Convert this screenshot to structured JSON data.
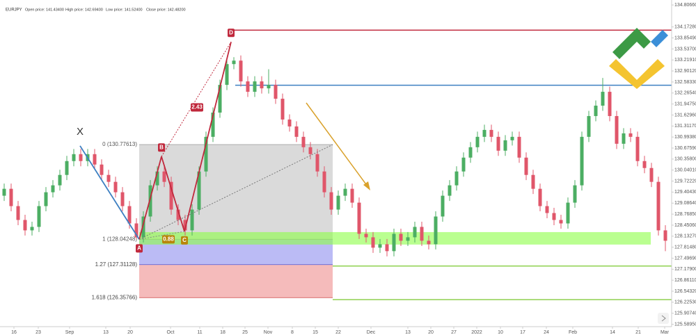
{
  "chart_data": {
    "type": "candlestick",
    "symbol": "EURJPY",
    "header": [
      "Open price: 141.43400",
      "High price: 142.69400",
      "Low price: 141.52400",
      "Close price: 142.48200"
    ],
    "up_color": "#4cae63",
    "down_color": "#e0566a",
    "xlim": [
      -0.6,
      95.9
    ],
    "ylim": [
      125.52,
      134.95
    ],
    "yticks": [
      {
        "value": 134.8066,
        "label": "134.80660"
      },
      {
        "value": 134.1728,
        "label": "134.17280"
      },
      {
        "value": 133.8549,
        "label": "133.85490"
      },
      {
        "value": 133.537,
        "label": "133.53700"
      },
      {
        "value": 133.2191,
        "label": "133.21910"
      },
      {
        "value": 132.9012,
        "label": "132.90120"
      },
      {
        "value": 132.5833,
        "label": "132.58330"
      },
      {
        "value": 132.2654,
        "label": "132.26540"
      },
      {
        "value": 131.9475,
        "label": "131.94750"
      },
      {
        "value": 131.6296,
        "label": "131.62960"
      },
      {
        "value": 131.3117,
        "label": "131.31170"
      },
      {
        "value": 130.9938,
        "label": "130.99380"
      },
      {
        "value": 130.6759,
        "label": "130.67590"
      },
      {
        "value": 130.358,
        "label": "130.35800"
      },
      {
        "value": 130.0401,
        "label": "130.04010"
      },
      {
        "value": 129.7222,
        "label": "129.72220"
      },
      {
        "value": 129.4043,
        "label": "129.40430"
      },
      {
        "value": 129.0864,
        "label": "129.08640"
      },
      {
        "value": 128.7685,
        "label": "128.76850"
      },
      {
        "value": 128.4506,
        "label": "128.45060"
      },
      {
        "value": 128.1327,
        "label": "128.13270"
      },
      {
        "value": 127.8148,
        "label": "127.81480"
      },
      {
        "value": 127.4969,
        "label": "127.49690"
      },
      {
        "value": 127.179,
        "label": "127.17900"
      },
      {
        "value": 126.8611,
        "label": "126.86110"
      },
      {
        "value": 126.5432,
        "label": "126.54320"
      },
      {
        "value": 126.2253,
        "label": "126.22530"
      },
      {
        "value": 125.9074,
        "label": "125.90740"
      },
      {
        "value": 125.5895,
        "label": "125.58950"
      }
    ],
    "xticks": [
      {
        "value": 1.4,
        "label": "16"
      },
      {
        "value": 4.9,
        "label": "23"
      },
      {
        "value": 9.4,
        "label": "Sep"
      },
      {
        "value": 14.6,
        "label": "13"
      },
      {
        "value": 18.1,
        "label": "20"
      },
      {
        "value": 23.9,
        "label": "Oct"
      },
      {
        "value": 28.1,
        "label": "11"
      },
      {
        "value": 31.4,
        "label": "18"
      },
      {
        "value": 34.6,
        "label": "25"
      },
      {
        "value": 37.9,
        "label": "Nov"
      },
      {
        "value": 41.4,
        "label": "8"
      },
      {
        "value": 44.7,
        "label": "15"
      },
      {
        "value": 48,
        "label": "22"
      },
      {
        "value": 52.7,
        "label": "Dec"
      },
      {
        "value": 58,
        "label": "13"
      },
      {
        "value": 61.3,
        "label": "20"
      },
      {
        "value": 64.6,
        "label": "27"
      },
      {
        "value": 67.9,
        "label": "2022"
      },
      {
        "value": 71.3,
        "label": "10"
      },
      {
        "value": 74.5,
        "label": "17"
      },
      {
        "value": 77.9,
        "label": "24"
      },
      {
        "value": 81.7,
        "label": "Feb"
      },
      {
        "value": 87.4,
        "label": "14"
      },
      {
        "value": 91.1,
        "label": "21"
      },
      {
        "value": 94.9,
        "label": "Mar"
      }
    ],
    "candles": [
      [
        129.3,
        129.65,
        129.15,
        129.5
      ],
      [
        129.5,
        129.65,
        128.85,
        129.0
      ],
      [
        129.0,
        129.15,
        128.45,
        128.6
      ],
      [
        128.6,
        128.75,
        128.15,
        128.3
      ],
      [
        128.3,
        128.55,
        128.15,
        128.4
      ],
      [
        128.4,
        129.15,
        128.25,
        129.0
      ],
      [
        129.0,
        129.55,
        128.85,
        129.4
      ],
      [
        129.4,
        129.75,
        129.25,
        129.6
      ],
      [
        129.6,
        130.05,
        129.45,
        129.9
      ],
      [
        129.9,
        130.45,
        129.75,
        130.3
      ],
      [
        130.3,
        130.65,
        130.15,
        130.5
      ],
      [
        130.5,
        130.65,
        130.15,
        130.3
      ],
      [
        130.3,
        130.65,
        130.15,
        130.5
      ],
      [
        130.5,
        130.65,
        130.05,
        130.2
      ],
      [
        130.2,
        130.35,
        129.75,
        129.9
      ],
      [
        129.9,
        130.05,
        129.55,
        129.7
      ],
      [
        129.7,
        129.85,
        129.25,
        129.4
      ],
      [
        129.4,
        129.55,
        128.85,
        129.0
      ],
      [
        129.0,
        129.15,
        128.35,
        128.5
      ],
      [
        128.5,
        128.65,
        128.04,
        128.1
      ],
      [
        128.1,
        128.85,
        127.95,
        128.7
      ],
      [
        128.7,
        129.75,
        128.55,
        129.6
      ],
      [
        129.6,
        130.15,
        129.45,
        130.0
      ],
      [
        130.0,
        130.15,
        129.55,
        129.7
      ],
      [
        129.7,
        129.85,
        128.75,
        128.9
      ],
      [
        128.9,
        129.05,
        128.45,
        128.6
      ],
      [
        128.6,
        128.75,
        128.15,
        128.3
      ],
      [
        128.3,
        129.05,
        128.15,
        128.9
      ],
      [
        128.9,
        130.15,
        128.75,
        130.0
      ],
      [
        130.0,
        131.15,
        129.85,
        131.0
      ],
      [
        131.0,
        131.85,
        130.85,
        131.7
      ],
      [
        131.7,
        132.65,
        131.55,
        132.5
      ],
      [
        132.5,
        133.25,
        132.35,
        133.1
      ],
      [
        133.1,
        133.3,
        132.95,
        133.2
      ],
      [
        133.2,
        133.35,
        132.45,
        132.6
      ],
      [
        132.6,
        132.75,
        132.15,
        132.3
      ],
      [
        132.3,
        132.75,
        132.15,
        132.6
      ],
      [
        132.6,
        132.75,
        132.25,
        132.4
      ],
      [
        132.4,
        132.95,
        132.25,
        132.5
      ],
      [
        132.5,
        132.65,
        131.95,
        132.1
      ],
      [
        132.1,
        132.25,
        131.35,
        131.5
      ],
      [
        131.5,
        131.65,
        131.15,
        131.3
      ],
      [
        131.3,
        131.45,
        130.85,
        131.0
      ],
      [
        131.0,
        131.15,
        130.55,
        130.7
      ],
      [
        130.7,
        130.85,
        130.35,
        130.5
      ],
      [
        130.5,
        130.65,
        129.85,
        130.0
      ],
      [
        130.0,
        130.15,
        129.25,
        129.4
      ],
      [
        129.4,
        129.55,
        128.75,
        128.9
      ],
      [
        128.9,
        129.45,
        128.75,
        129.3
      ],
      [
        129.3,
        129.65,
        129.15,
        129.5
      ],
      [
        129.5,
        129.65,
        128.95,
        129.1
      ],
      [
        129.1,
        129.25,
        128.05,
        128.2
      ],
      [
        128.2,
        128.35,
        127.95,
        128.1
      ],
      [
        128.1,
        128.25,
        127.65,
        127.8
      ],
      [
        127.8,
        128.05,
        127.65,
        127.9
      ],
      [
        127.9,
        128.05,
        127.55,
        127.7
      ],
      [
        127.7,
        128.35,
        127.55,
        128.2
      ],
      [
        128.2,
        128.35,
        127.85,
        128.0
      ],
      [
        128.0,
        128.25,
        127.85,
        128.1
      ],
      [
        128.1,
        128.55,
        127.95,
        128.4
      ],
      [
        128.4,
        128.55,
        127.85,
        128.0
      ],
      [
        128.0,
        128.15,
        127.75,
        127.9
      ],
      [
        127.9,
        128.85,
        127.75,
        128.7
      ],
      [
        128.7,
        129.45,
        128.55,
        129.3
      ],
      [
        129.3,
        129.75,
        129.15,
        129.6
      ],
      [
        129.6,
        130.15,
        129.45,
        130.0
      ],
      [
        130.0,
        130.55,
        129.85,
        130.4
      ],
      [
        130.4,
        130.85,
        130.25,
        130.7
      ],
      [
        130.7,
        131.15,
        130.55,
        131.0
      ],
      [
        131.0,
        131.35,
        130.85,
        131.2
      ],
      [
        131.2,
        131.35,
        130.85,
        131.0
      ],
      [
        131.0,
        131.15,
        130.45,
        130.6
      ],
      [
        130.6,
        131.05,
        130.45,
        130.9
      ],
      [
        130.9,
        131.15,
        130.75,
        131.0
      ],
      [
        131.0,
        131.15,
        130.25,
        130.4
      ],
      [
        130.4,
        130.55,
        129.75,
        129.9
      ],
      [
        129.9,
        130.05,
        129.35,
        129.5
      ],
      [
        129.5,
        129.65,
        128.85,
        129.0
      ],
      [
        129.0,
        129.15,
        128.65,
        128.8
      ],
      [
        128.8,
        128.95,
        128.45,
        128.6
      ],
      [
        128.6,
        128.75,
        128.35,
        128.5
      ],
      [
        128.5,
        129.25,
        128.35,
        129.1
      ],
      [
        129.1,
        129.75,
        128.95,
        129.6
      ],
      [
        129.6,
        131.15,
        129.45,
        131.0
      ],
      [
        131.0,
        131.75,
        130.85,
        131.6
      ],
      [
        131.6,
        132.05,
        131.45,
        131.9
      ],
      [
        131.9,
        132.7,
        131.75,
        132.3
      ],
      [
        132.3,
        132.45,
        131.45,
        131.6
      ],
      [
        131.6,
        131.75,
        130.65,
        130.8
      ],
      [
        130.8,
        131.25,
        130.65,
        131.1
      ],
      [
        131.1,
        131.25,
        130.85,
        131.0
      ],
      [
        131.0,
        131.15,
        130.15,
        130.3
      ],
      [
        130.3,
        130.45,
        129.95,
        130.1
      ],
      [
        130.1,
        130.25,
        129.55,
        129.7
      ],
      [
        129.7,
        129.85,
        128.15,
        128.3
      ],
      [
        128.3,
        128.45,
        127.7,
        128.0
      ]
    ],
    "fib": {
      "from": 19.4,
      "to": 47.2,
      "levels": [
        {
          "value": 130.77613,
          "label": "0 (130.77613)"
        },
        {
          "value": 128.04248,
          "label": "1 (128.04248)"
        },
        {
          "value": 127.31128,
          "label": "1.27 (127.31128)"
        },
        {
          "value": 126.35766,
          "label": "1.618 (126.35766)"
        }
      ]
    },
    "pattern": [
      {
        "label": "X",
        "x": 10.9,
        "y": 130.74
      },
      {
        "label": "A",
        "x": 19.4,
        "y": 128.04
      },
      {
        "label": "B",
        "x": 22.6,
        "y": 130.43
      },
      {
        "label": "C",
        "x": 25.9,
        "y": 128.27
      },
      {
        "label": "D",
        "x": 32.6,
        "y": 133.74
      }
    ],
    "ratios": [
      {
        "label": "2.43",
        "x": 27.7,
        "y": 131.85
      },
      {
        "label": "0.88",
        "x": 22.6,
        "y": 128.04
      }
    ],
    "zone": {
      "from": 19.4,
      "to": 92.9,
      "low": 127.89,
      "high": 128.25
    },
    "lines": [
      {
        "from": 32.6,
        "y": 134.08,
        "color": "#c0283c"
      },
      {
        "from": 33.2,
        "y": 132.49,
        "color": "#3d7fc1"
      },
      {
        "from": 47.2,
        "y": 127.27,
        "color": "#8fd14f"
      },
      {
        "from": 47.2,
        "y": 126.3,
        "color": "#8fd14f"
      }
    ]
  }
}
